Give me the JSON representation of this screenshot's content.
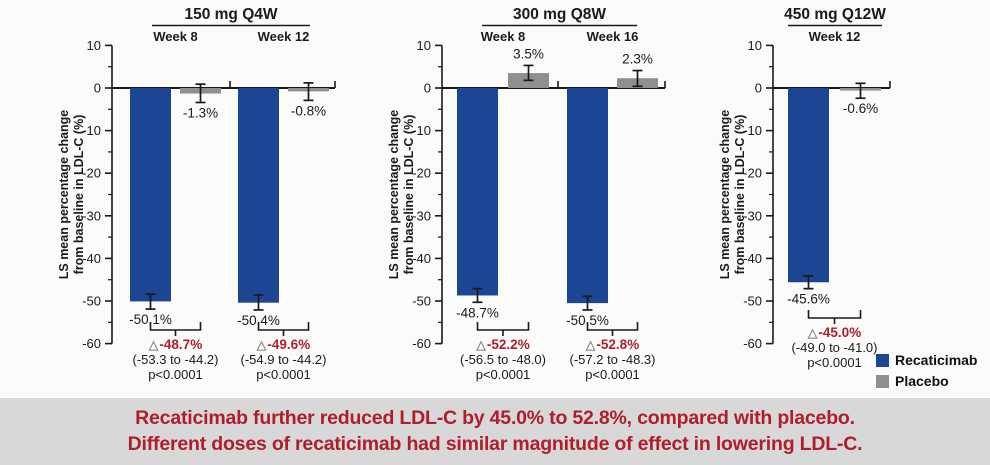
{
  "colors": {
    "recaticimab": "#1c4693",
    "placebo": "#8f8f8f",
    "accent_red": "#ae1e2c",
    "axis_black": "#1a1a1a",
    "banner_bg": "#d8d8d8"
  },
  "delta_symbol": "△",
  "legend": {
    "items": [
      {
        "label": "Recaticimab",
        "color_key": "recaticimab"
      },
      {
        "label": "Placebo",
        "color_key": "placebo"
      }
    ]
  },
  "chart_data": [
    {
      "type": "bar",
      "title": "150 mg Q4W",
      "ylabel_lines": [
        "LS mean percentage change",
        "from baseline in LDL-C (%)"
      ],
      "ylim": [
        -60,
        10
      ],
      "ytick_step": 10,
      "grid": false,
      "groups": [
        {
          "label": "Week 8",
          "bars": [
            {
              "series": "Recaticimab",
              "value": -50.1,
              "label": "-50.1%",
              "err": [
                -51.9,
                -48.4
              ]
            },
            {
              "series": "Placebo",
              "value": -1.3,
              "label": "-1.3%",
              "err": [
                -3.4,
                0.9
              ]
            }
          ],
          "difference": {
            "delta": "-48.7%",
            "ci": "(-53.3 to -44.2)",
            "p": "p<0.0001"
          }
        },
        {
          "label": "Week 12",
          "bars": [
            {
              "series": "Recaticimab",
              "value": -50.4,
              "label": "-50.4%",
              "err": [
                -52.1,
                -48.6
              ]
            },
            {
              "series": "Placebo",
              "value": -0.8,
              "label": "-0.8%",
              "err": [
                -2.9,
                1.2
              ]
            }
          ],
          "difference": {
            "delta": "-49.6%",
            "ci": "(-54.9 to -44.2)",
            "p": "p<0.0001"
          }
        }
      ]
    },
    {
      "type": "bar",
      "title": "300 mg Q8W",
      "ylabel_lines": [
        "LS mean percentage change",
        "from baseline in LDL-C (%)"
      ],
      "ylim": [
        -60,
        10
      ],
      "ytick_step": 10,
      "grid": false,
      "groups": [
        {
          "label": "Week 8",
          "bars": [
            {
              "series": "Recaticimab",
              "value": -48.7,
              "label": "-48.7%",
              "err": [
                -50.3,
                -47.1
              ]
            },
            {
              "series": "Placebo",
              "value": 3.5,
              "label": "3.5%",
              "err": [
                1.8,
                5.3
              ]
            }
          ],
          "difference": {
            "delta": "-52.2%",
            "ci": "(-56.5 to -48.0)",
            "p": "p<0.0001"
          }
        },
        {
          "label": "Week 16",
          "bars": [
            {
              "series": "Recaticimab",
              "value": -50.5,
              "label": "-50.5%",
              "err": [
                -52.1,
                -48.9
              ]
            },
            {
              "series": "Placebo",
              "value": 2.3,
              "label": "2.3%",
              "err": [
                0.4,
                4.1
              ]
            }
          ],
          "difference": {
            "delta": "-52.8%",
            "ci": "(-57.2 to -48.3)",
            "p": "p<0.0001"
          }
        }
      ]
    },
    {
      "type": "bar",
      "title": "450 mg Q12W",
      "ylabel_lines": [
        "LS mean percentage change",
        "from baseline in LDL-C (%)"
      ],
      "ylim": [
        -60,
        10
      ],
      "ytick_step": 10,
      "grid": false,
      "groups": [
        {
          "label": "Week 12",
          "bars": [
            {
              "series": "Recaticimab",
              "value": -45.6,
              "label": "-45.6%",
              "err": [
                -47.1,
                -44.1
              ]
            },
            {
              "series": "Placebo",
              "value": -0.6,
              "label": "-0.6%",
              "err": [
                -2.4,
                1.1
              ]
            }
          ],
          "difference": {
            "delta": "-45.0%",
            "ci": "(-49.0 to -41.0)",
            "p": "p<0.0001"
          }
        }
      ]
    }
  ],
  "footer": {
    "line1": "Recaticimab further reduced LDL-C by 45.0% to 52.8%, compared with placebo.",
    "line2": "Different doses of recaticimab had similar magnitude of effect in lowering LDL-C."
  }
}
